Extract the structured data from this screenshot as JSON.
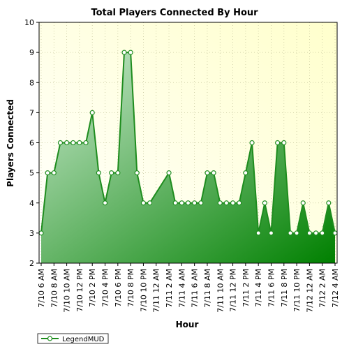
{
  "colors": {
    "series_line": "#1e8c1e",
    "marker_fill": "#ffffff",
    "plot_bg_top": "#ffffcc",
    "plot_bg_bottom": "#ffffff",
    "area_light": "#ccead0",
    "area_dark": "#008000",
    "grid": "#c8c8a0",
    "frame": "#000000"
  },
  "chart_data": {
    "type": "area",
    "title": "Total Players Connected By Hour",
    "xlabel": "Hour",
    "ylabel": "Players Connected",
    "ylim": [
      2,
      10
    ],
    "yticks": [
      2,
      3,
      4,
      5,
      6,
      7,
      8,
      9,
      10
    ],
    "grid": true,
    "legend_position": "bottom-left",
    "x_labels": [
      "7/10 6 AM",
      "7/10 8 AM",
      "7/10 10 AM",
      "7/10 12 PM",
      "7/10 2 PM",
      "7/10 4 PM",
      "7/10 6 PM",
      "7/10 8 PM",
      "7/10 10 PM",
      "7/11 12 AM",
      "7/11 2 AM",
      "7/11 4 AM",
      "7/11 6 AM",
      "7/11 8 AM",
      "7/11 10 AM",
      "7/11 12 PM",
      "7/11 2 PM",
      "7/11 4 PM",
      "7/11 6 PM",
      "7/11 8 PM",
      "7/11 10 PM",
      "7/12 12 AM",
      "7/12 2 AM",
      "7/12 4 AM"
    ],
    "series": [
      {
        "name": "LegendMUD",
        "points": [
          [
            0,
            3
          ],
          [
            1,
            5
          ],
          [
            2,
            5
          ],
          [
            3,
            6
          ],
          [
            4,
            6
          ],
          [
            5,
            6
          ],
          [
            6,
            6
          ],
          [
            7,
            6
          ],
          [
            8,
            7
          ],
          [
            9,
            5
          ],
          [
            10,
            4
          ],
          [
            11,
            5
          ],
          [
            12,
            5
          ],
          [
            13,
            9
          ],
          [
            14,
            9
          ],
          [
            15,
            5
          ],
          [
            16,
            4
          ],
          [
            17,
            4
          ],
          [
            20,
            5
          ],
          [
            21,
            4
          ],
          [
            22,
            4
          ],
          [
            23,
            4
          ],
          [
            24,
            4
          ],
          [
            25,
            4
          ],
          [
            26,
            5
          ],
          [
            27,
            5
          ],
          [
            28,
            4
          ],
          [
            29,
            4
          ],
          [
            30,
            4
          ],
          [
            31,
            4
          ],
          [
            32,
            5
          ],
          [
            33,
            6
          ],
          [
            34,
            3
          ],
          [
            35,
            4
          ],
          [
            36,
            3
          ],
          [
            37,
            6
          ],
          [
            38,
            6
          ],
          [
            39,
            3
          ],
          [
            40,
            3
          ],
          [
            41,
            4
          ],
          [
            42,
            3
          ],
          [
            43,
            3
          ],
          [
            44,
            3
          ],
          [
            45,
            4
          ],
          [
            46,
            3
          ]
        ]
      }
    ]
  }
}
